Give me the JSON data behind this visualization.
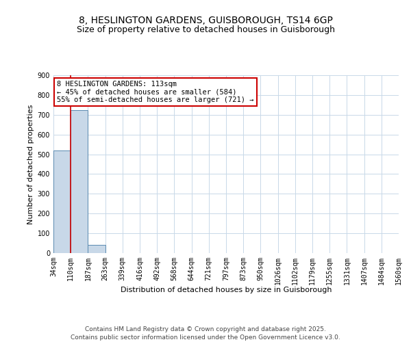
{
  "title_line1": "8, HESLINGTON GARDENS, GUISBOROUGH, TS14 6GP",
  "title_line2": "Size of property relative to detached houses in Guisborough",
  "xlabel": "Distribution of detached houses by size in Guisborough",
  "ylabel": "Number of detached properties",
  "categories": [
    "34sqm",
    "110sqm",
    "187sqm",
    "263sqm",
    "339sqm",
    "416sqm",
    "492sqm",
    "568sqm",
    "644sqm",
    "721sqm",
    "797sqm",
    "873sqm",
    "950sqm",
    "1026sqm",
    "1102sqm",
    "1179sqm",
    "1255sqm",
    "1331sqm",
    "1407sqm",
    "1484sqm",
    "1560sqm"
  ],
  "bar_heights": [
    520,
    725,
    40,
    0,
    0,
    0,
    0,
    0,
    0,
    0,
    0,
    0,
    0,
    0,
    0,
    0,
    0,
    0,
    0,
    0
  ],
  "bar_color": "#c8d8e8",
  "bar_edge_color": "#5a8ab0",
  "grid_color": "#c8d8e8",
  "annotation_text": "8 HESLINGTON GARDENS: 113sqm\n← 45% of detached houses are smaller (584)\n55% of semi-detached houses are larger (721) →",
  "annotation_box_color": "#ffffff",
  "annotation_border_color": "#cc0000",
  "vline_color": "#cc0000",
  "vline_x": 1.0,
  "ylim": [
    0,
    900
  ],
  "yticks": [
    0,
    100,
    200,
    300,
    400,
    500,
    600,
    700,
    800,
    900
  ],
  "footer_line1": "Contains HM Land Registry data © Crown copyright and database right 2025.",
  "footer_line2": "Contains public sector information licensed under the Open Government Licence v3.0.",
  "background_color": "#ffffff",
  "title_fontsize": 10,
  "subtitle_fontsize": 9,
  "axis_label_fontsize": 8,
  "tick_fontsize": 7,
  "annotation_fontsize": 7.5,
  "footer_fontsize": 6.5
}
